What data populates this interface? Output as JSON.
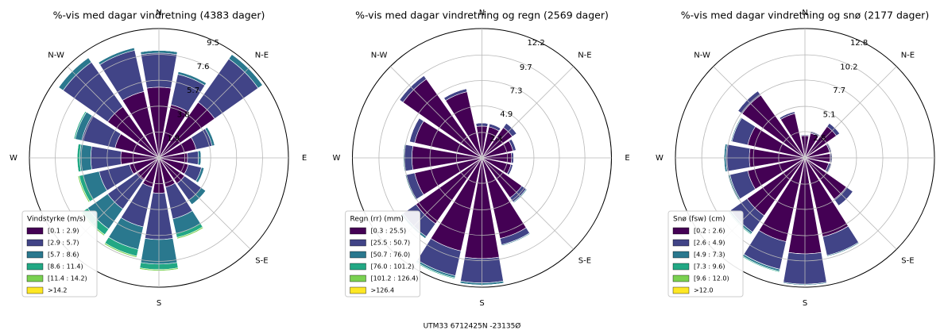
{
  "chart_data": [
    {
      "type": "windrose",
      "title": "%-vis med dagar vindretning (4383 dager)",
      "ylim": [
        0,
        9.5
      ],
      "yticks": [
        1.9,
        3.8,
        5.7,
        7.6,
        9.5
      ],
      "direction_labels": [
        "N",
        "N-E",
        "E",
        "S-E",
        "S",
        null,
        "W",
        "N-W"
      ],
      "legend_title": "Vindstyrke (m/s)",
      "series": [
        {
          "name": "[0.1 : 2.9)",
          "color": "#440154",
          "values": [
            5.2,
            4.0,
            5.0,
            2.8,
            2.1,
            2.2,
            2.3,
            2.2,
            2.6,
            2.2,
            2.0,
            2.2,
            2.8,
            3.3,
            4.6,
            5.0
          ]
        },
        {
          "name": "[2.9 : 5.7)",
          "color": "#414487",
          "values": [
            2.5,
            2.3,
            3.9,
            1.2,
            0.8,
            1.0,
            1.5,
            2.4,
            3.4,
            3.0,
            2.6,
            2.3,
            2.2,
            2.5,
            4.0,
            3.1
          ]
        },
        {
          "name": "[5.7 : 8.6)",
          "color": "#2a788e",
          "values": [
            0.2,
            0.2,
            0.4,
            0.2,
            0.2,
            0.2,
            0.4,
            1.1,
            1.8,
            1.7,
            1.8,
            1.2,
            0.8,
            0.5,
            0.4,
            0.2
          ]
        },
        {
          "name": "[8.6 : 11.4)",
          "color": "#22a884",
          "values": [
            0,
            0,
            0,
            0,
            0,
            0,
            0,
            0.3,
            0.4,
            0.5,
            0.5,
            0.3,
            0.2,
            0.1,
            0,
            0
          ]
        },
        {
          "name": "[11.4 : 14.2)",
          "color": "#7ad151",
          "values": [
            0,
            0,
            0,
            0,
            0,
            0,
            0,
            0.1,
            0.1,
            0.1,
            0.1,
            0.1,
            0,
            0,
            0,
            0
          ]
        },
        {
          "name": ">14.2",
          "color": "#fde725",
          "values": [
            0,
            0,
            0,
            0,
            0,
            0,
            0,
            0,
            0,
            0,
            0,
            0,
            0,
            0,
            0,
            0
          ]
        }
      ]
    },
    {
      "type": "windrose",
      "title": "%-vis med dagar vindretning og regn (2569 dager)",
      "ylim": [
        0,
        12.2
      ],
      "yticks": [
        2.4,
        4.9,
        7.3,
        9.7,
        12.2
      ],
      "direction_labels": [
        "N",
        "N-E",
        "E",
        "S-E",
        "S",
        null,
        "W",
        "N-W"
      ],
      "legend_title": "Regn (rr) (mm)",
      "series": [
        {
          "name": "[0.3 : 25.5)",
          "color": "#440154",
          "values": [
            3.0,
            3.0,
            3.5,
            3.0,
            2.8,
            2.8,
            4.6,
            7.8,
            9.5,
            9.0,
            7.6,
            6.5,
            6.6,
            6.5,
            9.1,
            6.4
          ]
        },
        {
          "name": "[25.5 : 50.7)",
          "color": "#414487",
          "values": [
            0.3,
            0.3,
            0.5,
            0.3,
            0.2,
            0.2,
            0.5,
            0.6,
            2.3,
            2.4,
            1.5,
            0.8,
            0.7,
            0.5,
            0.4,
            0.3
          ]
        },
        {
          "name": "[50.7 : 76.0)",
          "color": "#2a788e",
          "values": [
            0,
            0,
            0,
            0,
            0,
            0,
            0.1,
            0.1,
            0.2,
            0.2,
            0.2,
            0.1,
            0.1,
            0,
            0,
            0
          ]
        },
        {
          "name": "[76.0 : 101.2)",
          "color": "#22a884",
          "values": [
            0,
            0,
            0,
            0,
            0,
            0,
            0,
            0,
            0,
            0.1,
            0,
            0,
            0,
            0,
            0,
            0
          ]
        },
        {
          "name": "[101.2 : 126.4)",
          "color": "#7ad151",
          "values": [
            0,
            0,
            0,
            0,
            0,
            0,
            0,
            0,
            0,
            0,
            0,
            0,
            0,
            0,
            0,
            0
          ]
        },
        {
          "name": ">126.4",
          "color": "#fde725",
          "values": [
            0,
            0,
            0,
            0,
            0,
            0,
            0,
            0,
            0,
            0,
            0,
            0,
            0,
            0,
            0,
            0
          ]
        }
      ]
    },
    {
      "type": "windrose",
      "title": "%-vis med dagar vindretning og snø (2177 dager)",
      "ylim": [
        0,
        12.8
      ],
      "yticks": [
        2.6,
        5.1,
        7.7,
        10.2,
        12.8
      ],
      "direction_labels": [
        "N",
        "N-E",
        "E",
        "S-E",
        "S",
        null,
        "W",
        "N-W"
      ],
      "legend_title": "Snø (fsw) (cm)",
      "series": [
        {
          "name": "[0.2 : 2.6)",
          "color": "#440154",
          "values": [
            2.2,
            2.5,
            3.8,
            2.5,
            2.5,
            2.4,
            5.0,
            8.0,
            9.5,
            8.5,
            7.0,
            5.8,
            5.5,
            5.8,
            7.6,
            4.5
          ]
        },
        {
          "name": "[2.6 : 4.9)",
          "color": "#414487",
          "values": [
            0.1,
            0.2,
            0.4,
            0.2,
            0.2,
            0.3,
            0.8,
            1.9,
            3.0,
            2.8,
            2.0,
            1.8,
            2.3,
            1.6,
            0.5,
            0.2
          ]
        },
        {
          "name": "[4.9 : 7.3)",
          "color": "#2a788e",
          "values": [
            0,
            0,
            0,
            0,
            0,
            0,
            0,
            0.1,
            0.1,
            0.2,
            0.2,
            0.2,
            0.2,
            0.1,
            0,
            0
          ]
        },
        {
          "name": "[7.3 : 9.6)",
          "color": "#22a884",
          "values": [
            0,
            0,
            0,
            0,
            0,
            0,
            0,
            0,
            0,
            0.1,
            0.1,
            0,
            0,
            0,
            0,
            0
          ]
        },
        {
          "name": "[9.6 : 12.0)",
          "color": "#7ad151",
          "values": [
            0,
            0,
            0,
            0,
            0,
            0,
            0,
            0,
            0,
            0,
            0,
            0,
            0,
            0,
            0,
            0
          ]
        },
        {
          "name": ">12.0",
          "color": "#fde725",
          "values": [
            0,
            0,
            0,
            0,
            0,
            0,
            0,
            0,
            0,
            0,
            0,
            0,
            0,
            0,
            0,
            0
          ]
        }
      ]
    }
  ],
  "footer": "UTM33 6712425N -23135Ø"
}
